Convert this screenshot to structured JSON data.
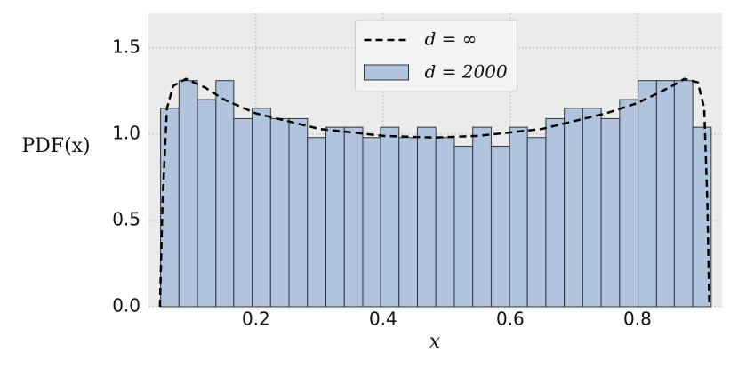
{
  "chart_data": {
    "type": "histogram",
    "xlabel": "x",
    "ylabel": "PDF(x)",
    "name": "d = 2000",
    "color": "#b0c4de",
    "edgecolor": "#333333",
    "bins": [
      0.05,
      0.079,
      0.108,
      0.137,
      0.165,
      0.194,
      0.223,
      0.252,
      0.281,
      0.31,
      0.339,
      0.368,
      0.396,
      0.425,
      0.454,
      0.483,
      0.512,
      0.541,
      0.57,
      0.599,
      0.627,
      0.656,
      0.685,
      0.714,
      0.743,
      0.772,
      0.801,
      0.83,
      0.858,
      0.887,
      0.916
    ],
    "values": [
      1.15,
      1.31,
      1.2,
      1.31,
      1.09,
      1.15,
      1.09,
      1.09,
      0.98,
      1.04,
      1.04,
      0.98,
      1.04,
      0.98,
      1.04,
      0.98,
      0.93,
      1.04,
      0.93,
      1.04,
      0.98,
      1.09,
      1.15,
      1.15,
      1.09,
      1.2,
      1.31,
      1.31,
      1.31,
      1.04
    ],
    "curve": {
      "type": "line",
      "name": "d = ∞",
      "color": "#000000",
      "dash": true,
      "x": [
        0.049,
        0.053,
        0.06,
        0.07,
        0.09,
        0.12,
        0.15,
        0.2,
        0.3,
        0.4,
        0.48,
        0.55,
        0.65,
        0.75,
        0.8,
        0.85,
        0.874,
        0.895,
        0.905,
        0.91,
        0.913
      ],
      "values": [
        0,
        0.6,
        1.15,
        1.28,
        1.32,
        1.27,
        1.2,
        1.12,
        1.03,
        0.99,
        0.98,
        0.99,
        1.03,
        1.12,
        1.18,
        1.27,
        1.32,
        1.3,
        1.15,
        0.6,
        0
      ]
    },
    "xlim": [
      0.031,
      0.933
    ],
    "ylim": [
      0,
      1.7
    ],
    "xticks": [
      0.2,
      0.4,
      0.6,
      0.8
    ],
    "yticks": [
      {
        "value": 0,
        "label": "0.0"
      },
      0.5,
      {
        "value": 1,
        "label": "1.0"
      },
      1.5
    ],
    "grid": true,
    "legend": "upper center"
  }
}
